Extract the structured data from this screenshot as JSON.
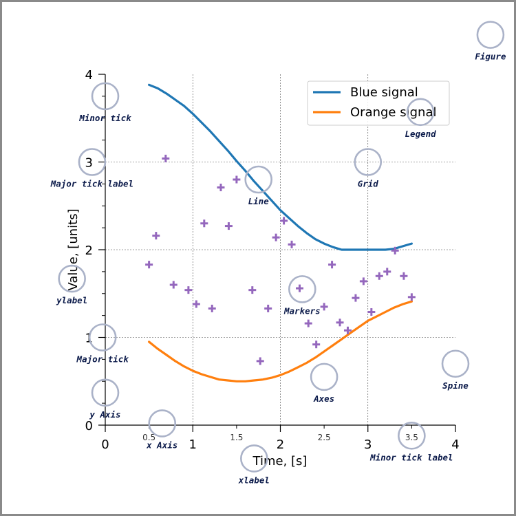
{
  "chart_data": {
    "type": "line",
    "xlabel": "Time, [s]",
    "ylabel": "Value, [units]",
    "xlim": [
      0,
      4
    ],
    "ylim": [
      0,
      4
    ],
    "major_xticks": [
      "0",
      "1",
      "2",
      "3",
      "4"
    ],
    "major_xtick_values": [
      0,
      1,
      2,
      3,
      4
    ],
    "major_yticks": [
      "0",
      "1",
      "2",
      "3",
      "4"
    ],
    "major_ytick_values": [
      0,
      1,
      2,
      3,
      4
    ],
    "minor_xtick_labels": [
      "0.5",
      "1.5",
      "2.5",
      "3.5"
    ],
    "minor_xtick_values": [
      0.5,
      1.5,
      2.5,
      3.5
    ],
    "minor_ytick_values": [
      0.25,
      0.5,
      0.75,
      1.25,
      1.5,
      1.75,
      2.25,
      2.5,
      2.75,
      3.25,
      3.5,
      3.75
    ],
    "grid": true,
    "legend_position": "top-right",
    "series": [
      {
        "name": "Blue signal",
        "kind": "line",
        "color": "#1f77b4",
        "x": [
          0.5,
          0.6,
          0.7,
          0.8,
          0.9,
          1.0,
          1.1,
          1.2,
          1.3,
          1.4,
          1.5,
          1.6,
          1.7,
          1.8,
          1.9,
          2.0,
          2.1,
          2.2,
          2.3,
          2.4,
          2.5,
          2.6,
          2.7,
          2.8,
          2.9,
          3.0,
          3.1,
          3.2,
          3.3,
          3.4,
          3.5
        ],
        "y": [
          3.88,
          3.84,
          3.78,
          3.71,
          3.64,
          3.55,
          3.45,
          3.35,
          3.24,
          3.13,
          3.01,
          2.9,
          2.78,
          2.67,
          2.56,
          2.45,
          2.36,
          2.27,
          2.19,
          2.12,
          2.07,
          2.03,
          2.0,
          2.0,
          2.0,
          2.0,
          2.0,
          2.0,
          2.01,
          2.04,
          2.07
        ]
      },
      {
        "name": "Orange signal",
        "kind": "line",
        "color": "#ff7f0e",
        "x": [
          0.5,
          0.6,
          0.7,
          0.8,
          0.9,
          1.0,
          1.1,
          1.2,
          1.3,
          1.4,
          1.5,
          1.6,
          1.7,
          1.8,
          1.9,
          2.0,
          2.1,
          2.2,
          2.3,
          2.4,
          2.5,
          2.6,
          2.7,
          2.8,
          2.9,
          3.0,
          3.1,
          3.2,
          3.3,
          3.4,
          3.5
        ],
        "y": [
          0.95,
          0.87,
          0.8,
          0.73,
          0.67,
          0.62,
          0.58,
          0.55,
          0.52,
          0.51,
          0.5,
          0.5,
          0.51,
          0.52,
          0.54,
          0.57,
          0.61,
          0.66,
          0.71,
          0.77,
          0.84,
          0.91,
          0.98,
          1.05,
          1.12,
          1.19,
          1.24,
          1.29,
          1.34,
          1.38,
          1.41
        ]
      },
      {
        "kind": "scatter",
        "marker": "plus",
        "color": "#9467bd",
        "x": [
          0.5,
          0.58,
          0.69,
          0.78,
          0.95,
          1.04,
          1.13,
          1.22,
          1.32,
          1.41,
          1.5,
          1.68,
          1.77,
          1.86,
          1.95,
          2.04,
          2.13,
          2.22,
          2.32,
          2.41,
          2.5,
          2.59,
          2.68,
          2.77,
          2.86,
          2.95,
          3.04,
          3.13,
          3.22,
          3.31,
          3.41,
          3.5
        ],
        "y": [
          1.83,
          2.16,
          3.04,
          1.6,
          1.54,
          1.38,
          2.3,
          1.33,
          2.71,
          2.27,
          2.8,
          1.54,
          0.73,
          1.33,
          2.14,
          2.33,
          2.06,
          1.56,
          1.16,
          0.92,
          1.35,
          1.83,
          1.17,
          1.08,
          1.45,
          1.64,
          1.29,
          1.7,
          1.75,
          1.99,
          1.7,
          1.46
        ]
      }
    ],
    "annotations": [
      {
        "label": "Figure",
        "x": 4.4,
        "y": 4.45
      },
      {
        "label": "Minor tick",
        "x": 0.0,
        "y": 3.75
      },
      {
        "label": "Legend",
        "x": 3.6,
        "y": 3.57
      },
      {
        "label": "Major tick label",
        "x": -0.15,
        "y": 3.0
      },
      {
        "label": "Grid",
        "x": 3.0,
        "y": 3.0
      },
      {
        "label": "Line",
        "x": 1.75,
        "y": 2.8
      },
      {
        "label": "ylabel",
        "x": -0.38,
        "y": 1.67
      },
      {
        "label": "Markers",
        "x": 2.25,
        "y": 1.55
      },
      {
        "label": "Major tick",
        "x": -0.03,
        "y": 1.0
      },
      {
        "label": "Axes",
        "x": 2.5,
        "y": 0.55
      },
      {
        "label": "Spine",
        "x": 4.0,
        "y": 0.7
      },
      {
        "label": "y Axis",
        "x": 0.0,
        "y": 0.37
      },
      {
        "label": "x Axis",
        "x": 0.65,
        "y": 0.02
      },
      {
        "label": "Minor tick label",
        "x": 3.5,
        "y": -0.12
      },
      {
        "label": "xlabel",
        "x": 1.7,
        "y": -0.38
      }
    ]
  }
}
